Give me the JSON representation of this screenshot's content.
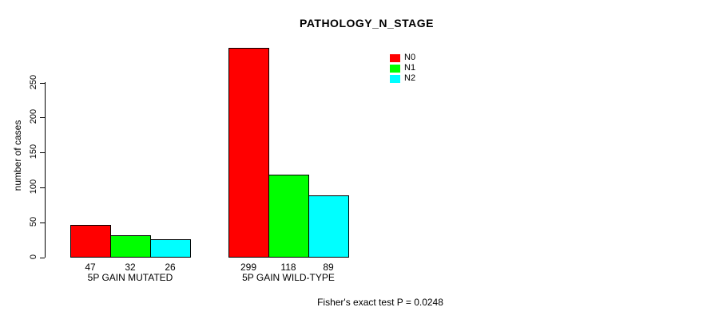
{
  "title": "PATHOLOGY_N_STAGE",
  "ylabel": "number of cases",
  "annotation": "Fisher's exact test P = 0.0248",
  "colors": {
    "n0": "#FF0000",
    "n1": "#00FF00",
    "n2": "#00FFFF",
    "axis": "#000000",
    "background": "#FFFFFF"
  },
  "legend": {
    "items": [
      {
        "label": "N0",
        "color": "#FF0000"
      },
      {
        "label": "N1",
        "color": "#00FF00"
      },
      {
        "label": "N2",
        "color": "#00FFFF"
      }
    ]
  },
  "chart_data": {
    "type": "bar",
    "title": "PATHOLOGY_N_STAGE",
    "xlabel": "",
    "ylabel": "number of cases",
    "categories": [
      "5P GAIN MUTATED",
      "5P GAIN WILD-TYPE"
    ],
    "series": [
      {
        "name": "N0",
        "color": "#FF0000",
        "values": [
          47,
          299
        ]
      },
      {
        "name": "N1",
        "color": "#00FF00",
        "values": [
          32,
          118
        ]
      },
      {
        "name": "N2",
        "color": "#00FFFF",
        "values": [
          26,
          89
        ]
      }
    ],
    "value_labels": [
      [
        "47",
        "32",
        "26"
      ],
      [
        "299",
        "118",
        "89"
      ]
    ],
    "yticks": [
      0,
      50,
      100,
      150,
      200,
      250
    ],
    "ylim": [
      0,
      250
    ],
    "grid": false,
    "legend_position": "top-right",
    "annotation": "Fisher's exact test P = 0.0248"
  }
}
